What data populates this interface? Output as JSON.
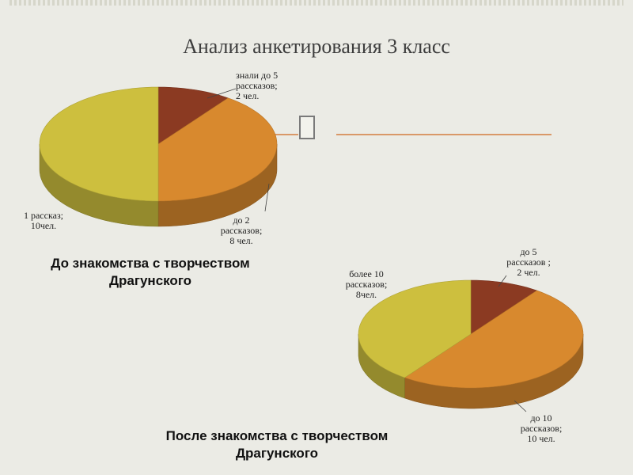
{
  "slide": {
    "title": "Анализ анкетирования  3 класс"
  },
  "colors": {
    "background": "#ebebe5",
    "accent_line": "#d99868",
    "slice_dark_red": "#8b3a22",
    "slice_orange": "#d8892e",
    "slice_yellow": "#cdbf3e"
  },
  "chart_data": [
    {
      "type": "pie",
      "style": "3d",
      "caption": "До знакомства с творчеством Драгунского",
      "categories": [
        "знали до 5 рассказов",
        "до 2 рассказов",
        "1 рассказ"
      ],
      "values": [
        2,
        8,
        10
      ],
      "colors": [
        "#8b3a22",
        "#d8892e",
        "#cdbf3e"
      ],
      "data_labels": [
        [
          "знали до 5",
          "рассказов;",
          "2 чел."
        ],
        [
          "до 2",
          "рассказов;",
          "8 чел."
        ],
        [
          "1 рассказ;",
          "10чел."
        ]
      ]
    },
    {
      "type": "pie",
      "style": "3d",
      "caption": "После знакомства с творчеством Драгунского",
      "categories": [
        "до 5 рассказов",
        "до 10 рассказов",
        "более 10 рассказов"
      ],
      "values": [
        2,
        10,
        8
      ],
      "colors": [
        "#8b3a22",
        "#d8892e",
        "#cdbf3e"
      ],
      "data_labels": [
        [
          "до 5",
          "рассказов ;",
          "2 чел."
        ],
        [
          "до 10",
          "рассказов;",
          "10 чел."
        ],
        [
          "более 10",
          "рассказов;",
          "8чел."
        ]
      ]
    }
  ]
}
